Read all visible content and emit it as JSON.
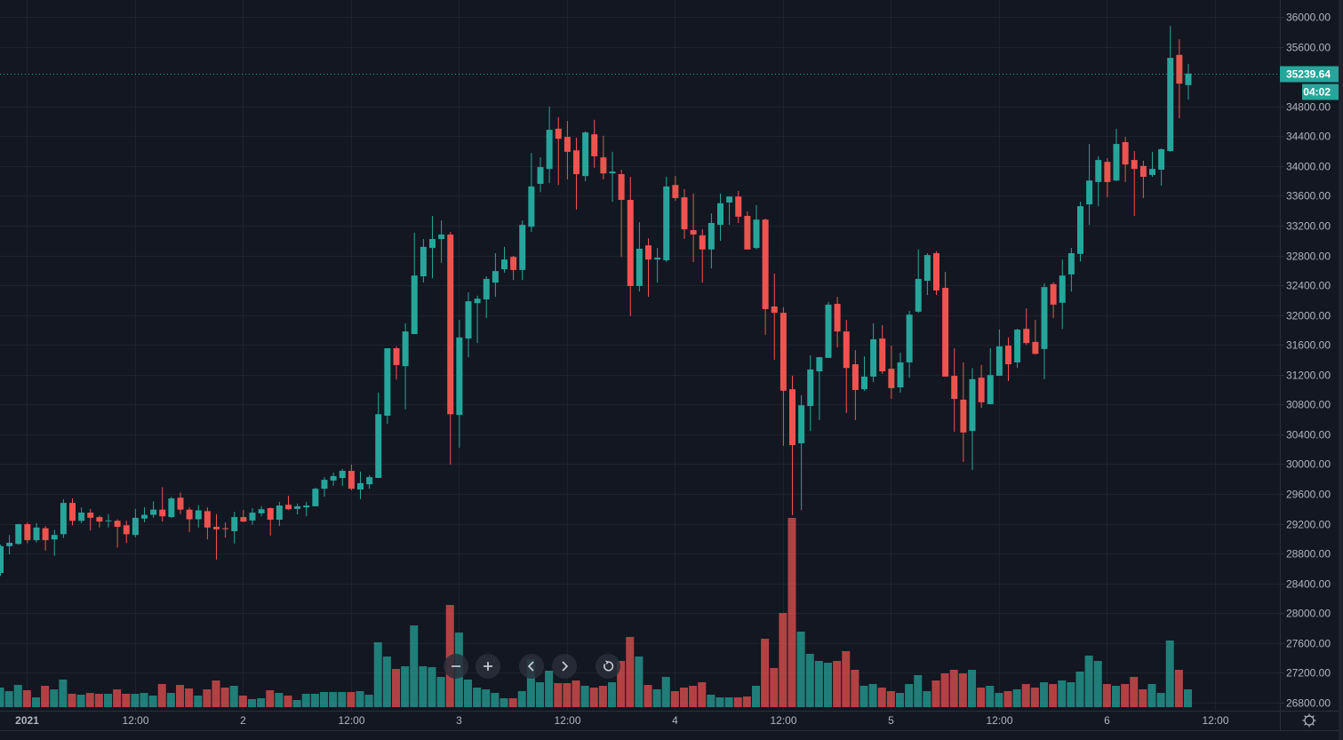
{
  "colors": {
    "background": "#131722",
    "grid": "#1e222d",
    "up": "#26a69a",
    "down": "#ef5350",
    "axis_text": "#b2b5be"
  },
  "price_axis": {
    "ticks": [
      "36000.00",
      "35600.00",
      "34800.00",
      "34400.00",
      "34000.00",
      "33600.00",
      "33200.00",
      "32800.00",
      "32400.00",
      "32000.00",
      "31600.00",
      "31200.00",
      "30800.00",
      "30400.00",
      "30000.00",
      "29600.00",
      "29200.00",
      "28800.00",
      "28400.00",
      "28000.00",
      "27600.00",
      "27200.00",
      "26800.00"
    ],
    "range": [
      26800,
      36000
    ],
    "last_price": "35239.64",
    "countdown": "04:02"
  },
  "time_axis": {
    "ticks": [
      {
        "label": "2021",
        "t": "2021-01-01 00:00",
        "bold": true
      },
      {
        "label": "12:00",
        "t": "2021-01-01 12:00"
      },
      {
        "label": "2",
        "t": "2021-01-02 00:00"
      },
      {
        "label": "12:00",
        "t": "2021-01-02 12:00"
      },
      {
        "label": "3",
        "t": "2021-01-03 00:00"
      },
      {
        "label": "12:00",
        "t": "2021-01-03 12:00"
      },
      {
        "label": "4",
        "t": "2021-01-04 00:00"
      },
      {
        "label": "12:00",
        "t": "2021-01-04 12:00"
      },
      {
        "label": "5",
        "t": "2021-01-05 00:00"
      },
      {
        "label": "12:00",
        "t": "2021-01-05 12:00"
      },
      {
        "label": "6",
        "t": "2021-01-06 00:00"
      },
      {
        "label": "12:00",
        "t": "2021-01-06 12:00"
      }
    ]
  },
  "controls": {
    "zoom_out": "zoom-out",
    "zoom_in": "zoom-in",
    "scroll_left": "scroll-left",
    "scroll_right": "scroll-right",
    "reset": "reset-chart",
    "settings": "settings"
  },
  "chart_data": {
    "type": "candlestick",
    "interval": "1h",
    "grid": true,
    "ylim": [
      26800,
      36000
    ],
    "columns": [
      "time",
      "open",
      "high",
      "low",
      "close",
      "volume"
    ],
    "candles": [
      [
        "2020-12-31 21:00",
        28540,
        28920,
        28500,
        28900,
        22
      ],
      [
        "2020-12-31 22:00",
        28900,
        29050,
        28790,
        28945,
        18
      ],
      [
        "2020-12-31 23:00",
        28930,
        29200,
        28920,
        29195,
        25
      ],
      [
        "2021-01-01 00:00",
        29195,
        29220,
        28940,
        28980,
        19
      ],
      [
        "2021-01-01 01:00",
        28980,
        29210,
        28950,
        29150,
        11
      ],
      [
        "2021-01-01 02:00",
        29140,
        29170,
        28840,
        28980,
        24
      ],
      [
        "2021-01-01 03:00",
        28990,
        29120,
        28770,
        29050,
        20
      ],
      [
        "2021-01-01 04:00",
        29060,
        29530,
        29010,
        29480,
        31
      ],
      [
        "2021-01-01 05:00",
        29480,
        29540,
        29180,
        29240,
        15
      ],
      [
        "2021-01-01 06:00",
        29240,
        29420,
        29210,
        29350,
        14
      ],
      [
        "2021-01-01 07:00",
        29350,
        29400,
        29110,
        29280,
        16
      ],
      [
        "2021-01-01 08:00",
        29290,
        29310,
        29150,
        29230,
        15
      ],
      [
        "2021-01-01 09:00",
        29240,
        29330,
        29150,
        29245,
        15
      ],
      [
        "2021-01-01 10:00",
        29240,
        29260,
        28880,
        29160,
        20
      ],
      [
        "2021-01-01 11:00",
        29180,
        29240,
        28940,
        29060,
        15
      ],
      [
        "2021-01-01 12:00",
        29050,
        29400,
        29020,
        29280,
        15
      ],
      [
        "2021-01-01 13:00",
        29270,
        29420,
        29220,
        29320,
        16
      ],
      [
        "2021-01-01 14:00",
        29320,
        29500,
        29280,
        29390,
        13
      ],
      [
        "2021-01-01 15:00",
        29390,
        29690,
        29230,
        29300,
        26
      ],
      [
        "2021-01-01 16:00",
        29290,
        29560,
        29280,
        29540,
        16
      ],
      [
        "2021-01-01 17:00",
        29550,
        29620,
        29330,
        29390,
        25
      ],
      [
        "2021-01-01 18:00",
        29390,
        29420,
        29090,
        29260,
        21
      ],
      [
        "2021-01-01 19:00",
        29260,
        29450,
        29150,
        29380,
        13
      ],
      [
        "2021-01-01 20:00",
        29370,
        29420,
        28990,
        29150,
        20
      ],
      [
        "2021-01-01 21:00",
        29160,
        29330,
        28720,
        29125,
        30
      ],
      [
        "2021-01-01 22:00",
        29140,
        29220,
        29015,
        29130,
        22
      ],
      [
        "2021-01-01 23:00",
        29100,
        29360,
        28935,
        29290,
        24
      ],
      [
        "2021-01-02 00:00",
        29290,
        29385,
        29220,
        29230,
        13
      ],
      [
        "2021-01-02 01:00",
        29245,
        29410,
        29185,
        29350,
        9
      ],
      [
        "2021-01-02 02:00",
        29340,
        29435,
        29300,
        29395,
        10
      ],
      [
        "2021-01-02 03:00",
        29410,
        29420,
        29040,
        29255,
        19
      ],
      [
        "2021-01-02 04:00",
        29255,
        29495,
        29170,
        29445,
        16
      ],
      [
        "2021-01-02 05:00",
        29455,
        29575,
        29385,
        29395,
        13
      ],
      [
        "2021-01-02 06:00",
        29400,
        29470,
        29325,
        29435,
        8
      ],
      [
        "2021-01-02 07:00",
        29420,
        29495,
        29300,
        29445,
        15
      ],
      [
        "2021-01-02 08:00",
        29435,
        29685,
        29435,
        29670,
        15
      ],
      [
        "2021-01-02 09:00",
        29670,
        29825,
        29565,
        29790,
        17
      ],
      [
        "2021-01-02 10:00",
        29780,
        29885,
        29710,
        29840,
        17
      ],
      [
        "2021-01-02 11:00",
        29815,
        29935,
        29710,
        29910,
        17
      ],
      [
        "2021-01-02 12:00",
        29910,
        29995,
        29650,
        29670,
        17
      ],
      [
        "2021-01-02 13:00",
        29660,
        29900,
        29530,
        29745,
        18
      ],
      [
        "2021-01-02 14:00",
        29730,
        29850,
        29670,
        29825,
        14
      ],
      [
        "2021-01-02 15:00",
        29815,
        30960,
        29815,
        30670,
        73
      ],
      [
        "2021-01-02 16:00",
        30650,
        31555,
        30540,
        31555,
        57
      ],
      [
        "2021-01-02 17:00",
        31555,
        31580,
        31135,
        31330,
        43
      ],
      [
        "2021-01-02 18:00",
        31315,
        31890,
        30735,
        31780,
        46
      ],
      [
        "2021-01-02 19:00",
        31745,
        33105,
        31745,
        32530,
        92
      ],
      [
        "2021-01-02 20:00",
        32520,
        33020,
        32435,
        32915,
        46
      ],
      [
        "2021-01-02 21:00",
        32900,
        33330,
        32495,
        33020,
        45
      ],
      [
        "2021-01-02 22:00",
        33020,
        33270,
        32700,
        33080,
        34
      ],
      [
        "2021-01-02 23:00",
        33080,
        33115,
        29995,
        30670,
        115
      ],
      [
        "2021-01-03 00:00",
        30660,
        31935,
        30220,
        31700,
        84
      ],
      [
        "2021-01-03 01:00",
        31685,
        32305,
        31435,
        32185,
        31
      ],
      [
        "2021-01-03 02:00",
        32160,
        32260,
        31625,
        32220,
        22
      ],
      [
        "2021-01-03 03:00",
        32210,
        32520,
        31960,
        32485,
        20
      ],
      [
        "2021-01-03 04:00",
        32435,
        32830,
        32245,
        32590,
        16
      ],
      [
        "2021-01-03 05:00",
        32615,
        32915,
        32570,
        32745,
        10
      ],
      [
        "2021-01-03 06:00",
        32780,
        32795,
        32470,
        32605,
        10
      ],
      [
        "2021-01-03 07:00",
        32605,
        33270,
        32470,
        33210,
        18
      ],
      [
        "2021-01-03 08:00",
        33185,
        34175,
        33115,
        33725,
        54
      ],
      [
        "2021-01-03 09:00",
        33760,
        34115,
        33650,
        33985,
        28
      ],
      [
        "2021-01-03 10:00",
        33960,
        34795,
        33770,
        34485,
        41
      ],
      [
        "2021-01-03 11:00",
        34500,
        34655,
        33745,
        34365,
        27
      ],
      [
        "2021-01-03 12:00",
        34390,
        34605,
        33820,
        34190,
        27
      ],
      [
        "2021-01-03 13:00",
        34210,
        34380,
        33415,
        33890,
        30
      ],
      [
        "2021-01-03 14:00",
        33865,
        34465,
        33795,
        34450,
        24
      ],
      [
        "2021-01-03 15:00",
        34425,
        34620,
        33975,
        34130,
        22
      ],
      [
        "2021-01-03 16:00",
        34115,
        34405,
        33820,
        33900,
        24
      ],
      [
        "2021-01-03 17:00",
        33900,
        34190,
        33520,
        33925,
        28
      ],
      [
        "2021-01-03 18:00",
        33890,
        33950,
        32780,
        33545,
        52
      ],
      [
        "2021-01-03 19:00",
        33545,
        33855,
        31985,
        32390,
        79
      ],
      [
        "2021-01-03 20:00",
        32390,
        33245,
        32315,
        32890,
        57
      ],
      [
        "2021-01-03 21:00",
        32935,
        33030,
        32245,
        32745,
        25
      ],
      [
        "2021-01-03 22:00",
        32745,
        32900,
        32435,
        32770,
        20
      ],
      [
        "2021-01-03 23:00",
        32735,
        33855,
        32710,
        33725,
        34
      ],
      [
        "2021-01-04 00:00",
        33745,
        33865,
        33535,
        33570,
        18
      ],
      [
        "2021-01-04 01:00",
        33580,
        33690,
        33020,
        33150,
        22
      ],
      [
        "2021-01-04 02:00",
        33140,
        33630,
        32710,
        33080,
        24
      ],
      [
        "2021-01-04 03:00",
        33070,
        33150,
        32435,
        32880,
        28
      ],
      [
        "2021-01-04 04:00",
        32880,
        33365,
        32625,
        33235,
        14
      ],
      [
        "2021-01-04 05:00",
        33210,
        33630,
        32995,
        33500,
        11
      ],
      [
        "2021-01-04 06:00",
        33510,
        33590,
        33210,
        33590,
        11
      ],
      [
        "2021-01-04 07:00",
        33590,
        33665,
        33235,
        33320,
        11
      ],
      [
        "2021-01-04 08:00",
        33330,
        33390,
        32880,
        32880,
        12
      ],
      [
        "2021-01-04 09:00",
        32900,
        33475,
        32880,
        33280,
        24
      ],
      [
        "2021-01-04 10:00",
        33280,
        33295,
        31735,
        32080,
        77
      ],
      [
        "2021-01-04 11:00",
        32115,
        32555,
        31400,
        32030,
        44
      ],
      [
        "2021-01-04 12:00",
        32030,
        32105,
        30245,
        30985,
        106
      ],
      [
        "2021-01-04 13:00",
        31005,
        31185,
        29315,
        30255,
        213
      ],
      [
        "2021-01-04 14:00",
        30280,
        30925,
        29385,
        30790,
        85
      ],
      [
        "2021-01-04 15:00",
        30780,
        31460,
        30445,
        31270,
        60
      ],
      [
        "2021-01-04 16:00",
        31245,
        31435,
        30590,
        31435,
        52
      ],
      [
        "2021-01-04 17:00",
        31425,
        32175,
        31425,
        32140,
        50
      ],
      [
        "2021-01-04 18:00",
        32150,
        32245,
        31565,
        31780,
        52
      ],
      [
        "2021-01-04 19:00",
        31780,
        31935,
        30685,
        31290,
        63
      ],
      [
        "2021-01-04 20:00",
        31340,
        31530,
        30590,
        30995,
        42
      ],
      [
        "2021-01-04 21:00",
        31005,
        31445,
        30985,
        31175,
        24
      ],
      [
        "2021-01-04 22:00",
        31175,
        31890,
        31100,
        31675,
        26
      ],
      [
        "2021-01-04 23:00",
        31685,
        31865,
        31210,
        31245,
        22
      ],
      [
        "2021-01-05 00:00",
        31280,
        31590,
        30875,
        31020,
        18
      ],
      [
        "2021-01-05 01:00",
        31030,
        31495,
        30960,
        31365,
        16
      ],
      [
        "2021-01-05 02:00",
        31365,
        32055,
        31160,
        32005,
        26
      ],
      [
        "2021-01-05 03:00",
        32045,
        32880,
        32030,
        32485,
        36
      ],
      [
        "2021-01-05 04:00",
        32460,
        32830,
        32270,
        32805,
        18
      ],
      [
        "2021-01-05 05:00",
        32830,
        32855,
        32270,
        32330,
        30
      ],
      [
        "2021-01-05 06:00",
        32365,
        32580,
        31175,
        31175,
        38
      ],
      [
        "2021-01-05 07:00",
        31185,
        31555,
        30435,
        30875,
        42
      ],
      [
        "2021-01-05 08:00",
        30865,
        31365,
        30030,
        30425,
        38
      ],
      [
        "2021-01-05 09:00",
        30445,
        31290,
        29920,
        31140,
        42
      ],
      [
        "2021-01-05 10:00",
        31160,
        31330,
        30755,
        30830,
        22
      ],
      [
        "2021-01-05 11:00",
        30805,
        31555,
        30805,
        31195,
        24
      ],
      [
        "2021-01-05 12:00",
        31185,
        31805,
        31185,
        31580,
        16
      ],
      [
        "2021-01-05 13:00",
        31590,
        31700,
        31115,
        31340,
        18
      ],
      [
        "2021-01-05 14:00",
        31365,
        31815,
        31290,
        31805,
        20
      ],
      [
        "2021-01-05 15:00",
        31815,
        32090,
        31600,
        31625,
        26
      ],
      [
        "2021-01-05 16:00",
        31640,
        31935,
        31470,
        31480,
        22
      ],
      [
        "2021-01-05 17:00",
        31545,
        32425,
        31140,
        32375,
        28
      ],
      [
        "2021-01-05 18:00",
        32415,
        32440,
        31960,
        32140,
        26
      ],
      [
        "2021-01-05 19:00",
        32165,
        32745,
        31815,
        32530,
        30
      ],
      [
        "2021-01-05 20:00",
        32545,
        32900,
        32315,
        32830,
        28
      ],
      [
        "2021-01-05 21:00",
        32820,
        33520,
        32720,
        33460,
        40
      ],
      [
        "2021-01-05 22:00",
        33485,
        34295,
        33210,
        33805,
        58
      ],
      [
        "2021-01-05 23:00",
        33785,
        34130,
        33460,
        34080,
        52
      ],
      [
        "2021-01-06 00:00",
        34055,
        34105,
        33580,
        33785,
        26
      ],
      [
        "2021-01-06 01:00",
        33805,
        34500,
        33795,
        34295,
        24
      ],
      [
        "2021-01-06 02:00",
        34320,
        34390,
        33785,
        34020,
        26
      ],
      [
        "2021-01-06 03:00",
        34080,
        34200,
        33330,
        33960,
        34
      ],
      [
        "2021-01-06 04:00",
        34000,
        34070,
        33570,
        33855,
        20
      ],
      [
        "2021-01-06 05:00",
        33880,
        34190,
        33855,
        33960,
        26
      ],
      [
        "2021-01-06 06:00",
        33950,
        34235,
        33735,
        34225,
        16
      ],
      [
        "2021-01-06 07:00",
        34200,
        35880,
        34190,
        35450,
        75
      ],
      [
        "2021-01-06 08:00",
        35490,
        35700,
        34640,
        35105,
        42
      ],
      [
        "2021-01-06 09:00",
        35085,
        35370,
        34890,
        35239.64,
        20
      ]
    ]
  }
}
